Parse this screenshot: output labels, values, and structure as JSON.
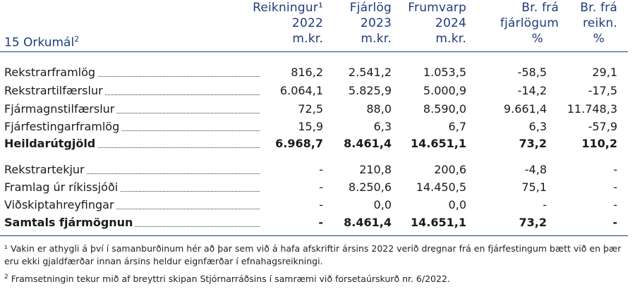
{
  "columns": [
    {
      "line1": "Reikningur¹",
      "line2": "2022",
      "line3": "m.kr."
    },
    {
      "line1": "Fjárlög",
      "line2": "2023",
      "line3": "m.kr."
    },
    {
      "line1": "Frumvarp",
      "line2": "2024",
      "line3": "m.kr."
    },
    {
      "line1": "Br. frá",
      "line2": "fjárlögum",
      "line3": "%"
    },
    {
      "line1": "Br. frá",
      "line2": "reikn.",
      "line3": "%"
    }
  ],
  "section_label": "15 Orkumál",
  "section_label_sup": "2",
  "group1": [
    {
      "label": "Rekstrarframlög",
      "values": [
        "816,2",
        "2.541,2",
        "1.053,5",
        "-58,5",
        "29,1"
      ]
    },
    {
      "label": "Rekstrartilfærslur",
      "values": [
        "6.064,1",
        "5.825,9",
        "5.000,9",
        "-14,2",
        "-17,5"
      ]
    },
    {
      "label": "Fjármagnstilfærslur",
      "values": [
        "72,5",
        "88,0",
        "8.590,0",
        "9.661,4",
        "11.748,3"
      ]
    },
    {
      "label": "Fjárfestingarframlög",
      "values": [
        "15,9",
        "6,3",
        "6,7",
        "6,3",
        "-57,9"
      ]
    }
  ],
  "total1": {
    "label": "Heildarútgjöld",
    "values": [
      "6.968,7",
      "8.461,4",
      "14.651,1",
      "73,2",
      "110,2"
    ]
  },
  "group2": [
    {
      "label": "Rekstrartekjur",
      "values": [
        "-",
        "210,8",
        "200,6",
        "-4,8",
        "-"
      ]
    },
    {
      "label": "Framlag úr ríkissjóði",
      "values": [
        "-",
        "8.250,6",
        "14.450,5",
        "75,1",
        "-"
      ]
    },
    {
      "label": "Viðskiptahreyfingar",
      "values": [
        "-",
        "0,0",
        "0,0",
        "-",
        "-"
      ]
    }
  ],
  "total2": {
    "label": "Samtals fjármögnun",
    "values": [
      "-",
      "8.461,4",
      "14.651,1",
      "73,2",
      "-"
    ]
  },
  "footnotes": [
    {
      "mark": "¹",
      "text": " Vakin er athygli á því í samanburðinum hér að þar sem við á hafa afskriftir ársins 2022 verið dregnar frá en fjárfestingum bætt við en þær eru ekki gjaldfærðar innan ársins heldur eignfærðar í efnahagsreikningi."
    },
    {
      "mark": "2",
      "text": " Framsetningin tekur mið af breyttri skipan Stjórnarráðsins í samræmi við forsetaúrskurð nr. 6/2022."
    }
  ]
}
